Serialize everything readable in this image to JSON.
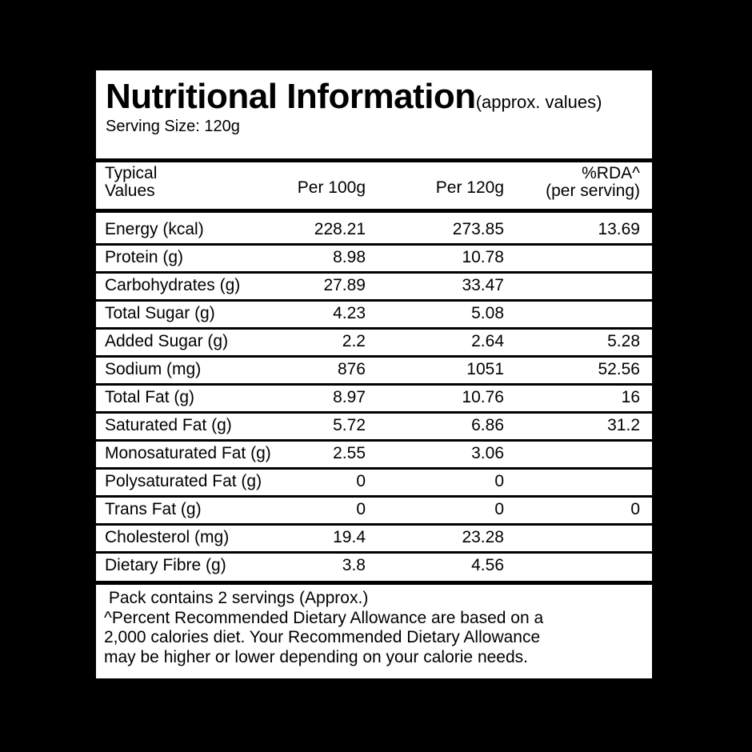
{
  "header": {
    "title": "Nutritional Information",
    "note": "(approx. values)",
    "serving_size": "Serving Size: 120g"
  },
  "table": {
    "columns": [
      [
        "Typical",
        "Values"
      ],
      [
        "Per 100g"
      ],
      [
        "Per 120g"
      ],
      [
        "%RDA^",
        "(per serving)"
      ]
    ],
    "rows": [
      [
        "Energy (kcal)",
        "228.21",
        "273.85",
        "13.69"
      ],
      [
        "Protein (g)",
        "8.98",
        "10.78"
      ],
      [
        "Carbohydrates (g)",
        "27.89",
        "33.47"
      ],
      [
        "Total Sugar (g)",
        "4.23",
        "5.08"
      ],
      [
        "Added Sugar (g)",
        "2.2",
        "2.64",
        "5.28"
      ],
      [
        "Sodium (mg)",
        "876",
        "1051",
        "52.56"
      ],
      [
        "Total Fat (g)",
        "8.97",
        "10.76",
        "16"
      ],
      [
        "Saturated Fat (g)",
        "5.72",
        "6.86",
        "31.2"
      ],
      [
        "Monosaturated Fat (g)",
        "2.55",
        "3.06"
      ],
      [
        "Polysaturated Fat (g)",
        "0",
        "0"
      ],
      [
        "Trans Fat (g)",
        "0",
        "0",
        "0"
      ],
      [
        "Cholesterol (mg)",
        "19.4",
        "23.28"
      ],
      [
        "Dietary Fibre (g)",
        "3.8",
        "4.56"
      ]
    ]
  },
  "footer": [
    " Pack contains 2 servings (Approx.)",
    "^Percent Recommended Dietary Allowance are based on a",
    "2,000 calories diet. Your Recommended Dietary Allowance",
    "may be higher or lower depending on your calorie needs."
  ]
}
